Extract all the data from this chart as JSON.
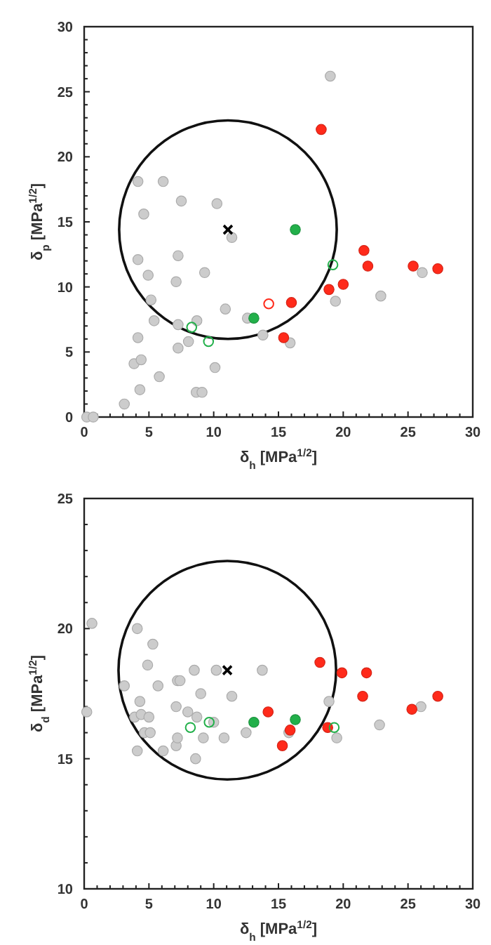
{
  "chart_data": [
    {
      "type": "scatter",
      "xlabel": "δ$_{h}$ [MPa$^{1/2}$]",
      "ylabel": "δ$_{p}$ [MPa$^{1/2}$]",
      "xlim": [
        0,
        30
      ],
      "ylim": [
        0,
        30
      ],
      "xticks": [
        0,
        {
          "value": 1,
          "label": null
        },
        {
          "value": 2,
          "label": null
        },
        {
          "value": 3,
          "label": null
        },
        {
          "value": 4,
          "label": null
        },
        5,
        {
          "value": 6,
          "label": null
        },
        {
          "value": 7,
          "label": null
        },
        {
          "value": 8,
          "label": null
        },
        {
          "value": 9,
          "label": null
        },
        10,
        {
          "value": 11,
          "label": null
        },
        {
          "value": 12,
          "label": null
        },
        {
          "value": 13,
          "label": null
        },
        {
          "value": 14,
          "label": null
        },
        15,
        {
          "value": 16,
          "label": null
        },
        {
          "value": 17,
          "label": null
        },
        {
          "value": 18,
          "label": null
        },
        {
          "value": 19,
          "label": null
        },
        20,
        {
          "value": 21,
          "label": null
        },
        {
          "value": 22,
          "label": null
        },
        {
          "value": 23,
          "label": null
        },
        {
          "value": 24,
          "label": null
        },
        25,
        {
          "value": 26,
          "label": null
        },
        {
          "value": 27,
          "label": null
        },
        {
          "value": 28,
          "label": null
        },
        {
          "value": 29,
          "label": null
        },
        30
      ],
      "yticks": [
        0,
        {
          "value": 1,
          "label": null
        },
        {
          "value": 2,
          "label": null
        },
        {
          "value": 3,
          "label": null
        },
        {
          "value": 4,
          "label": null
        },
        5,
        {
          "value": 6,
          "label": null
        },
        {
          "value": 7,
          "label": null
        },
        {
          "value": 8,
          "label": null
        },
        {
          "value": 9,
          "label": null
        },
        10,
        {
          "value": 11,
          "label": null
        },
        {
          "value": 12,
          "label": null
        },
        {
          "value": 13,
          "label": null
        },
        {
          "value": 14,
          "label": null
        },
        15,
        {
          "value": 16,
          "label": null
        },
        {
          "value": 17,
          "label": null
        },
        {
          "value": 18,
          "label": null
        },
        {
          "value": 19,
          "label": null
        },
        20,
        {
          "value": 21,
          "label": null
        },
        {
          "value": 22,
          "label": null
        },
        {
          "value": 23,
          "label": null
        },
        {
          "value": 24,
          "label": null
        },
        25,
        {
          "value": 26,
          "label": null
        },
        {
          "value": 27,
          "label": null
        },
        {
          "value": 28,
          "label": null
        },
        {
          "value": 29,
          "label": null
        },
        30
      ],
      "series": [
        {
          "marker": "circle",
          "color": "#cccccc",
          "x": [
            19.0,
            4.15,
            6.1,
            4.6,
            7.5,
            10.25,
            11.4,
            4.15,
            7.25,
            4.94,
            7.1,
            9.3,
            5.16,
            5.4,
            7.25,
            8.7,
            10.9,
            12.6,
            4.15,
            7.25,
            8.05,
            13.8,
            15.9,
            3.85,
            4.4,
            5.8,
            10.1,
            4.3,
            8.65,
            9.1,
            3.1,
            0.2,
            0.7,
            19.4,
            22.9,
            26.1
          ],
          "values": [
            26.2,
            18.1,
            18.1,
            15.6,
            16.6,
            16.4,
            13.8,
            12.1,
            12.4,
            10.9,
            10.4,
            11.1,
            9.0,
            7.4,
            7.1,
            7.4,
            8.3,
            7.6,
            6.1,
            5.3,
            5.8,
            6.3,
            5.7,
            4.1,
            4.4,
            3.1,
            3.8,
            2.1,
            1.9,
            1.9,
            1.0,
            0,
            0,
            8.9,
            9.3,
            11.1
          ]
        },
        {
          "marker": "circle",
          "color": "#ff2a1a",
          "x": [
            18.3,
            21.6,
            21.9,
            25.4,
            27.3,
            20.0,
            18.9,
            16.0,
            15.4
          ],
          "values": [
            22.1,
            12.8,
            11.6,
            11.6,
            11.4,
            10.2,
            9.8,
            8.8,
            6.1
          ]
        },
        {
          "marker": "circle-open",
          "color": "#ff2a1a",
          "x": [
            14.25
          ],
          "values": [
            8.7
          ]
        },
        {
          "marker": "circle",
          "color": "#22b04a",
          "x": [
            16.3,
            13.1
          ],
          "values": [
            14.4,
            7.6
          ]
        },
        {
          "marker": "circle-open",
          "color": "#22b04a",
          "x": [
            8.3,
            9.6,
            19.2
          ],
          "values": [
            6.9,
            5.8,
            11.7
          ]
        },
        {
          "marker": "cross",
          "color": "#000000",
          "x": [
            11.1
          ],
          "values": [
            14.4
          ]
        }
      ]
    },
    {
      "type": "scatter",
      "xlabel": "δ$_{h}$ [MPa$^{1/2}$]",
      "ylabel": "δ$_{d}$ [MPa$^{1/2}$]",
      "xlim": [
        0,
        30
      ],
      "ylim": [
        10,
        25
      ],
      "xticks": [
        0,
        {
          "value": 1,
          "label": null
        },
        {
          "value": 2,
          "label": null
        },
        {
          "value": 3,
          "label": null
        },
        {
          "value": 4,
          "label": null
        },
        5,
        {
          "value": 6,
          "label": null
        },
        {
          "value": 7,
          "label": null
        },
        {
          "value": 8,
          "label": null
        },
        {
          "value": 9,
          "label": null
        },
        10,
        {
          "value": 11,
          "label": null
        },
        {
          "value": 12,
          "label": null
        },
        {
          "value": 13,
          "label": null
        },
        {
          "value": 14,
          "label": null
        },
        15,
        {
          "value": 16,
          "label": null
        },
        {
          "value": 17,
          "label": null
        },
        {
          "value": 18,
          "label": null
        },
        {
          "value": 19,
          "label": null
        },
        20,
        {
          "value": 21,
          "label": null
        },
        {
          "value": 22,
          "label": null
        },
        {
          "value": 23,
          "label": null
        },
        {
          "value": 24,
          "label": null
        },
        25,
        {
          "value": 26,
          "label": null
        },
        {
          "value": 27,
          "label": null
        },
        {
          "value": 28,
          "label": null
        },
        {
          "value": 29,
          "label": null
        },
        30
      ],
      "yticks": [
        10,
        {
          "value": 11,
          "label": null
        },
        {
          "value": 12,
          "label": null
        },
        {
          "value": 13,
          "label": null
        },
        {
          "value": 14,
          "label": null
        },
        15,
        {
          "value": 16,
          "label": null
        },
        {
          "value": 17,
          "label": null
        },
        {
          "value": 18,
          "label": null
        },
        {
          "value": 19,
          "label": null
        },
        20,
        {
          "value": 21,
          "label": null
        },
        {
          "value": 22,
          "label": null
        },
        {
          "value": 23,
          "label": null
        },
        {
          "value": 24,
          "label": null
        },
        25
      ],
      "series": [
        {
          "marker": "circle",
          "color": "#cccccc",
          "x": [
            0.6,
            4.1,
            5.3,
            4.9,
            8.5,
            10.2,
            13.75,
            3.1,
            5.7,
            7.2,
            7.4,
            9.0,
            11.4,
            0.2,
            4.3,
            3.9,
            4.4,
            5.0,
            4.65,
            5.1,
            4.1,
            7.1,
            8.0,
            8.7,
            7.1,
            7.2,
            6.1,
            8.6,
            9.2,
            10.0,
            10.8,
            12.5,
            15.8,
            18.9,
            19.5,
            22.8,
            26.0
          ],
          "values": [
            20.2,
            20.0,
            19.4,
            18.6,
            18.4,
            18.4,
            18.4,
            17.8,
            17.8,
            18.0,
            18.0,
            17.5,
            17.4,
            16.8,
            17.2,
            16.6,
            16.7,
            16.6,
            16.0,
            16.0,
            15.3,
            17.0,
            16.8,
            16.6,
            15.5,
            15.8,
            15.3,
            15.0,
            15.8,
            16.4,
            15.8,
            16.0,
            16.0,
            17.2,
            15.8,
            16.3,
            17.0
          ]
        },
        {
          "marker": "circle",
          "color": "#ff2a1a",
          "x": [
            18.2,
            19.9,
            21.8,
            21.5,
            27.3,
            25.3,
            14.2,
            15.3,
            15.9,
            18.8
          ],
          "values": [
            18.7,
            18.3,
            18.3,
            17.4,
            17.4,
            16.9,
            16.8,
            15.5,
            16.1,
            16.2
          ]
        },
        {
          "marker": "circle",
          "color": "#22b04a",
          "x": [
            13.1,
            16.3
          ],
          "values": [
            16.4,
            16.5
          ]
        },
        {
          "marker": "circle-open",
          "color": "#22b04a",
          "x": [
            8.2,
            9.65,
            19.3
          ],
          "values": [
            16.2,
            16.4,
            16.2
          ]
        },
        {
          "marker": "cross",
          "color": "#000000",
          "x": [
            11.05
          ],
          "values": [
            18.4
          ]
        }
      ]
    }
  ]
}
